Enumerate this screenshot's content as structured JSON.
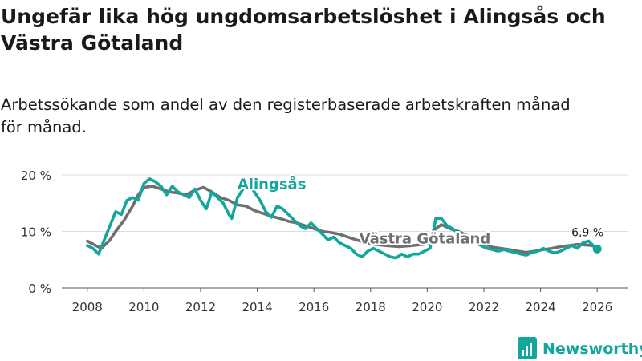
{
  "chart_data": {
    "type": "line",
    "title": "Ungefär lika hög ungdomsarbetslöshet i Alingsås och Västra Götaland",
    "title_lines": [
      "Ungefär lika hög ungdomsarbetslöshet i Alingsås och",
      "Västra Götaland"
    ],
    "subtitle": "Arbetssökande som andel av den registerbaserade arbetskraften månad för månad.",
    "subtitle_lines": [
      "Arbetssökande som andel av den registerbaserade arbetskraften månad",
      "för månad."
    ],
    "xlabel": "",
    "ylabel": "",
    "xlim": [
      2007.1,
      2027.1
    ],
    "ylim": [
      0,
      20
    ],
    "grid": true,
    "x_ticks": [
      2008,
      2010,
      2012,
      2014,
      2016,
      2018,
      2020,
      2022,
      2024,
      2026
    ],
    "x_tick_labels": [
      "2008",
      "2010",
      "2012",
      "2014",
      "2016",
      "2018",
      "2020",
      "2022",
      "2024",
      "2026"
    ],
    "y_ticks": [
      0,
      10,
      20
    ],
    "y_tick_labels": [
      "0 %",
      "10 %",
      "20 %"
    ],
    "series": [
      {
        "name": "Västra Götaland",
        "color": "#6f6f6f",
        "points": [
          [
            2008.0,
            8.3
          ],
          [
            2008.3,
            7.5
          ],
          [
            2008.5,
            7.0
          ],
          [
            2008.8,
            8.5
          ],
          [
            2009.0,
            10.0
          ],
          [
            2009.3,
            12.0
          ],
          [
            2009.6,
            14.5
          ],
          [
            2009.8,
            16.5
          ],
          [
            2010.0,
            17.8
          ],
          [
            2010.3,
            18.0
          ],
          [
            2010.6,
            17.5
          ],
          [
            2010.9,
            17.0
          ],
          [
            2011.2,
            16.8
          ],
          [
            2011.5,
            16.5
          ],
          [
            2011.8,
            17.3
          ],
          [
            2012.1,
            17.8
          ],
          [
            2012.4,
            17.0
          ],
          [
            2012.7,
            16.0
          ],
          [
            2013.0,
            15.5
          ],
          [
            2013.3,
            14.7
          ],
          [
            2013.6,
            14.5
          ],
          [
            2013.9,
            13.7
          ],
          [
            2014.2,
            13.2
          ],
          [
            2014.5,
            12.7
          ],
          [
            2014.8,
            12.3
          ],
          [
            2015.1,
            11.8
          ],
          [
            2015.4,
            11.5
          ],
          [
            2015.7,
            11.0
          ],
          [
            2016.0,
            10.5
          ],
          [
            2016.3,
            10.0
          ],
          [
            2016.6,
            9.8
          ],
          [
            2016.9,
            9.5
          ],
          [
            2017.2,
            9.0
          ],
          [
            2017.5,
            8.5
          ],
          [
            2017.8,
            8.1
          ],
          [
            2018.0,
            7.8
          ],
          [
            2018.5,
            7.5
          ],
          [
            2019.0,
            7.3
          ],
          [
            2019.5,
            7.5
          ],
          [
            2020.0,
            7.8
          ],
          [
            2020.3,
            10.5
          ],
          [
            2020.5,
            11.2
          ],
          [
            2020.8,
            10.5
          ],
          [
            2021.1,
            10.0
          ],
          [
            2021.4,
            9.3
          ],
          [
            2021.7,
            8.5
          ],
          [
            2022.0,
            7.8
          ],
          [
            2022.3,
            7.2
          ],
          [
            2022.6,
            7.0
          ],
          [
            2022.9,
            6.8
          ],
          [
            2023.2,
            6.5
          ],
          [
            2023.5,
            6.3
          ],
          [
            2023.8,
            6.5
          ],
          [
            2024.1,
            6.8
          ],
          [
            2024.4,
            7.0
          ],
          [
            2024.7,
            7.3
          ],
          [
            2025.0,
            7.5
          ],
          [
            2025.3,
            7.7
          ],
          [
            2025.6,
            7.6
          ],
          [
            2025.8,
            7.5
          ],
          [
            2026.0,
            7.2
          ]
        ]
      },
      {
        "name": "Alingsås",
        "color": "#13a69a",
        "points": [
          [
            2008.0,
            7.5
          ],
          [
            2008.2,
            7.0
          ],
          [
            2008.4,
            6.0
          ],
          [
            2008.6,
            8.5
          ],
          [
            2008.8,
            11.0
          ],
          [
            2009.0,
            13.5
          ],
          [
            2009.2,
            13.0
          ],
          [
            2009.4,
            15.5
          ],
          [
            2009.6,
            16.0
          ],
          [
            2009.8,
            15.5
          ],
          [
            2010.0,
            18.5
          ],
          [
            2010.2,
            19.3
          ],
          [
            2010.4,
            18.8
          ],
          [
            2010.6,
            18.0
          ],
          [
            2010.8,
            16.5
          ],
          [
            2011.0,
            18.0
          ],
          [
            2011.2,
            17.0
          ],
          [
            2011.4,
            16.5
          ],
          [
            2011.6,
            16.0
          ],
          [
            2011.8,
            17.5
          ],
          [
            2012.0,
            15.5
          ],
          [
            2012.2,
            14.0
          ],
          [
            2012.4,
            17.0
          ],
          [
            2012.6,
            16.0
          ],
          [
            2012.8,
            15.0
          ],
          [
            2013.0,
            13.0
          ],
          [
            2013.1,
            12.3
          ],
          [
            2013.3,
            16.0
          ],
          [
            2013.5,
            17.5
          ],
          [
            2013.7,
            18.5
          ],
          [
            2013.9,
            17.0
          ],
          [
            2014.1,
            15.5
          ],
          [
            2014.3,
            13.5
          ],
          [
            2014.5,
            12.5
          ],
          [
            2014.7,
            14.5
          ],
          [
            2014.9,
            14.0
          ],
          [
            2015.1,
            13.0
          ],
          [
            2015.3,
            12.0
          ],
          [
            2015.5,
            11.0
          ],
          [
            2015.7,
            10.5
          ],
          [
            2015.9,
            11.5
          ],
          [
            2016.1,
            10.5
          ],
          [
            2016.3,
            9.5
          ],
          [
            2016.5,
            8.5
          ],
          [
            2016.7,
            9.0
          ],
          [
            2016.9,
            8.0
          ],
          [
            2017.1,
            7.5
          ],
          [
            2017.3,
            7.0
          ],
          [
            2017.5,
            6.0
          ],
          [
            2017.7,
            5.5
          ],
          [
            2017.9,
            6.5
          ],
          [
            2018.1,
            7.0
          ],
          [
            2018.3,
            6.5
          ],
          [
            2018.5,
            6.0
          ],
          [
            2018.7,
            5.5
          ],
          [
            2018.9,
            5.3
          ],
          [
            2019.1,
            6.0
          ],
          [
            2019.3,
            5.5
          ],
          [
            2019.5,
            6.0
          ],
          [
            2019.7,
            6.0
          ],
          [
            2019.9,
            6.5
          ],
          [
            2020.1,
            7.0
          ],
          [
            2020.3,
            12.3
          ],
          [
            2020.5,
            12.3
          ],
          [
            2020.7,
            11.0
          ],
          [
            2020.9,
            10.5
          ],
          [
            2021.1,
            9.5
          ],
          [
            2021.3,
            9.5
          ],
          [
            2021.5,
            8.5
          ],
          [
            2021.7,
            8.0
          ],
          [
            2021.9,
            7.5
          ],
          [
            2022.1,
            7.0
          ],
          [
            2022.3,
            6.8
          ],
          [
            2022.5,
            6.5
          ],
          [
            2022.7,
            6.8
          ],
          [
            2022.9,
            6.5
          ],
          [
            2023.1,
            6.3
          ],
          [
            2023.3,
            6.0
          ],
          [
            2023.5,
            5.8
          ],
          [
            2023.7,
            6.3
          ],
          [
            2023.9,
            6.5
          ],
          [
            2024.1,
            7.0
          ],
          [
            2024.3,
            6.5
          ],
          [
            2024.5,
            6.2
          ],
          [
            2024.7,
            6.5
          ],
          [
            2024.9,
            7.0
          ],
          [
            2025.1,
            7.5
          ],
          [
            2025.3,
            7.0
          ],
          [
            2025.5,
            8.0
          ],
          [
            2025.7,
            8.3
          ],
          [
            2025.9,
            7.3
          ],
          [
            2026.0,
            6.9
          ]
        ]
      }
    ],
    "annotations": [
      {
        "text": "Alingsås",
        "series": "Alingsås",
        "x": 2013.3,
        "y": 17.5
      },
      {
        "text": "Västra Götaland",
        "series": "Västra Götaland",
        "x": 2017.6,
        "y": 7.9
      },
      {
        "text": "6,9 %",
        "x": 2026.0,
        "y": 6.9
      }
    ]
  },
  "branding": {
    "name": "Newsworthy",
    "color": "#13a69a"
  }
}
